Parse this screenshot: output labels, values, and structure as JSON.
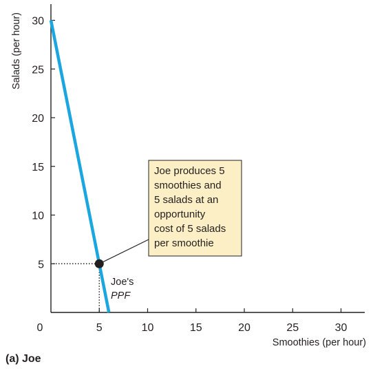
{
  "chart_data": {
    "type": "line",
    "panel_label": "(a) Joe",
    "xlabel": "Smoothies (per hour)",
    "ylabel": "Salads (per hour)",
    "xlim": [
      0,
      32
    ],
    "ylim": [
      0,
      32
    ],
    "x_ticks": [
      0,
      5,
      10,
      15,
      20,
      25,
      30
    ],
    "y_ticks": [
      5,
      10,
      15,
      20,
      25,
      30
    ],
    "x_tick_labels": [
      "0",
      "5",
      "10",
      "15",
      "20",
      "25",
      "30"
    ],
    "y_tick_labels": [
      "5",
      "10",
      "15",
      "20",
      "25",
      "30"
    ],
    "grid": false,
    "series": [
      {
        "label_line1": "Joe's",
        "label_line2": "PPF",
        "color": "#1ba6e0",
        "x": [
          0,
          6
        ],
        "y": [
          30,
          0
        ]
      }
    ],
    "point": {
      "x": 5,
      "y": 5,
      "color": "#231f20"
    },
    "annotation": {
      "lines": [
        "Joe produces 5",
        "smoothies and",
        "5 salads at an",
        "opportunity",
        "cost of 5 salads",
        "per smoothie"
      ],
      "box_fill": "#fdefc5",
      "box_border": "#231f20"
    }
  }
}
